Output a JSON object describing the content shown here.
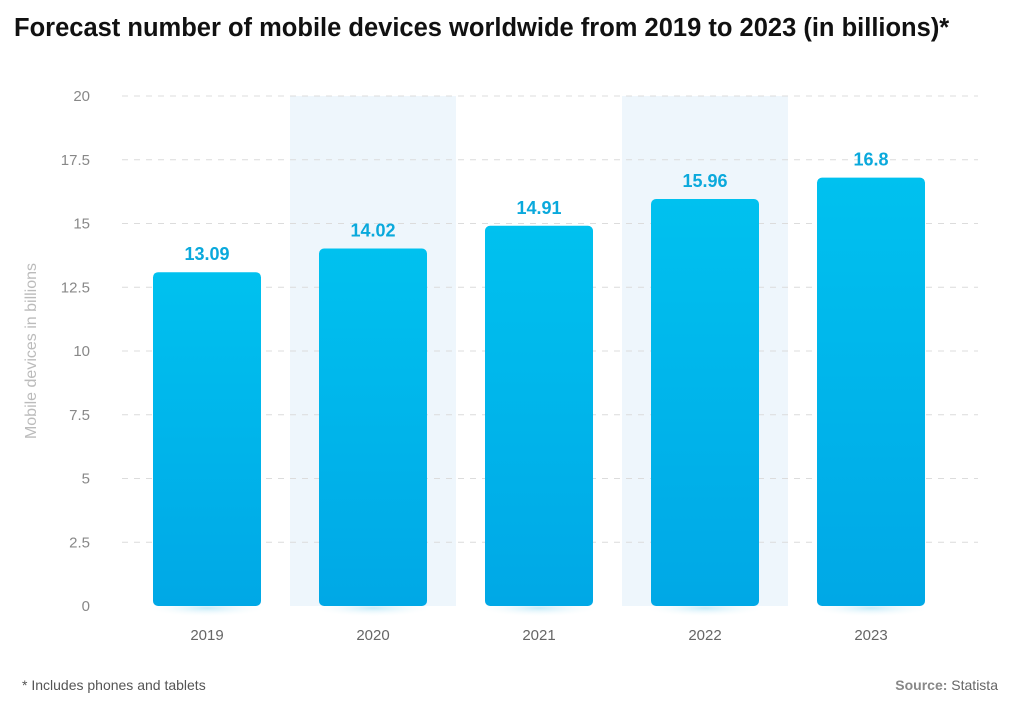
{
  "title": "Forecast number of mobile devices worldwide from 2019 to 2023 (in billions)*",
  "footnote": "* Includes phones and tablets",
  "source_label": "Source:",
  "source_value": "Statista",
  "colors": {
    "bar_top": "#00c1ef",
    "bar_bottom": "#00a8e6",
    "value_label": "#0aa9dc",
    "band": "#eef6fc",
    "grid": "#dcdcdc",
    "tick": "#888888",
    "axis_label": "#bbbbbb"
  },
  "chart_data": {
    "type": "bar",
    "title": "Forecast number of mobile devices worldwide from 2019 to 2023 (in billions)*",
    "xlabel": "",
    "ylabel": "Mobile devices in billions",
    "categories": [
      "2019",
      "2020",
      "2021",
      "2022",
      "2023"
    ],
    "values": [
      13.09,
      14.02,
      14.91,
      15.96,
      16.8
    ],
    "value_labels": [
      "13.09",
      "14.02",
      "14.91",
      "15.96",
      "16.8"
    ],
    "y_ticks": [
      0,
      2.5,
      5,
      7.5,
      10,
      12.5,
      15,
      17.5,
      20
    ],
    "y_tick_labels": [
      "0",
      "2.5",
      "5",
      "7.5",
      "10",
      "12.5",
      "15",
      "17.5",
      "20"
    ],
    "ylim": [
      0,
      20
    ],
    "grid": true,
    "highlighted_categories": [
      "2020",
      "2022"
    ]
  }
}
